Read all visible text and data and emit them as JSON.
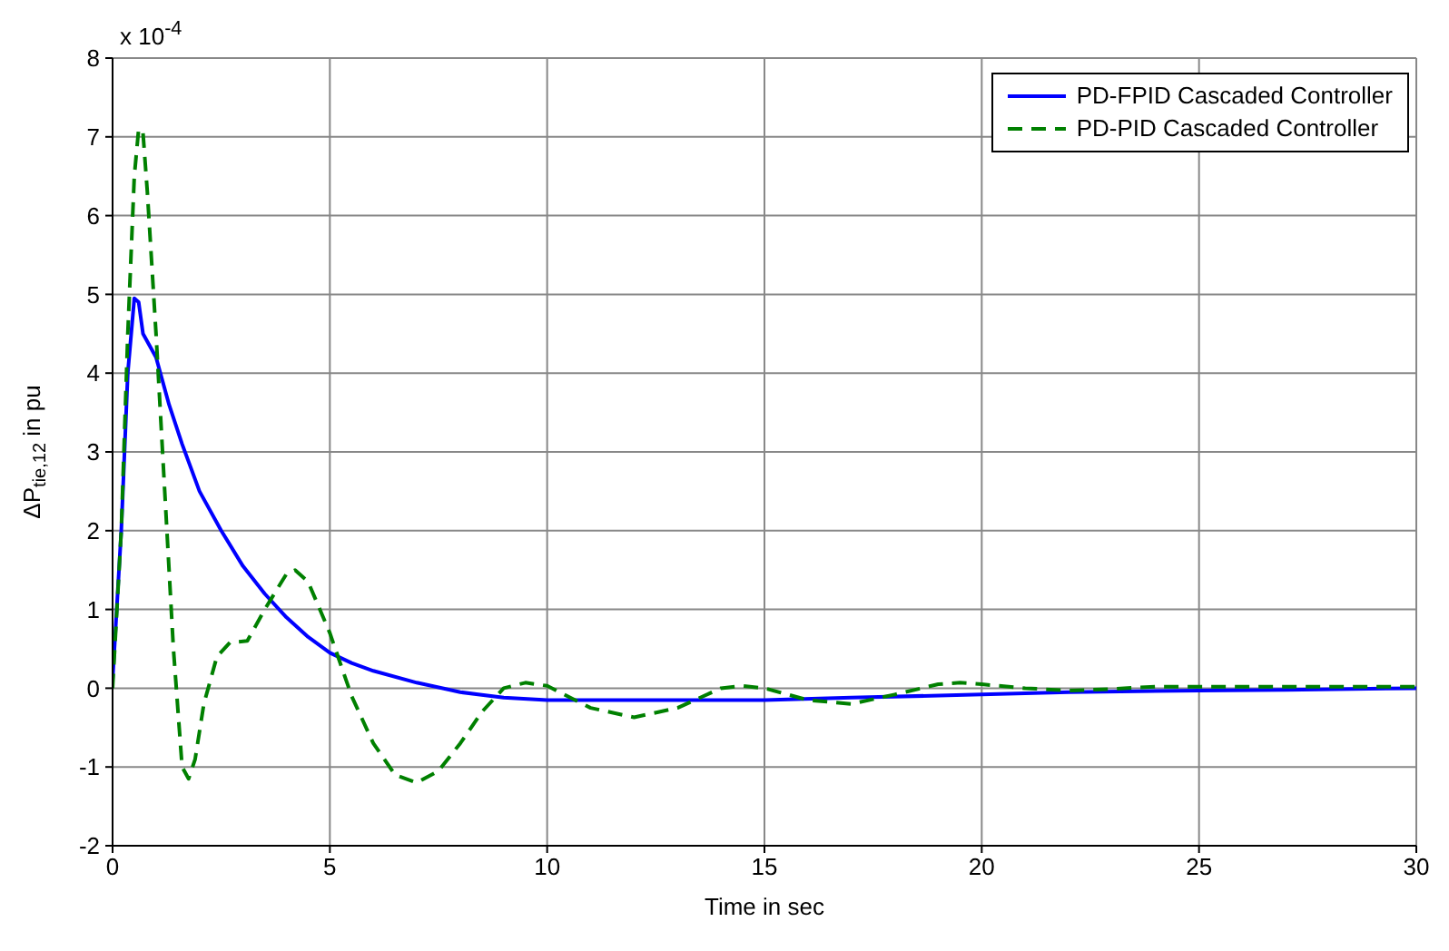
{
  "chart_data": {
    "type": "line",
    "xlabel": "Time in sec",
    "ylabel": "ΔP$_{tie,12}$ in pu",
    "annotations": [
      "x 10$^{-4}$"
    ],
    "xlim": [
      0,
      30
    ],
    "xticks": [
      0,
      5,
      10,
      15,
      20,
      25,
      30
    ],
    "ylim": [
      -2,
      8
    ],
    "yticks": [
      -2,
      -1,
      0,
      1,
      2,
      3,
      4,
      5,
      6,
      7,
      8
    ],
    "grid": true,
    "legend": "top right",
    "marker": "none",
    "series": [
      {
        "name": "PD-FPID Cascaded Controller",
        "color": "#0000ff",
        "line_style": "solid",
        "x": [
          0,
          0.2,
          0.35,
          0.5,
          0.6,
          0.7,
          1.0,
          1.3,
          1.6,
          2,
          2.5,
          3,
          3.5,
          4,
          4.5,
          5,
          5.5,
          6,
          7,
          8,
          9,
          10,
          12,
          15,
          17,
          20,
          22,
          25,
          27,
          30
        ],
        "values": [
          0.1,
          2,
          4,
          4.95,
          4.9,
          4.5,
          4.2,
          3.6,
          3.1,
          2.5,
          2.0,
          1.55,
          1.2,
          0.9,
          0.65,
          0.45,
          0.32,
          0.22,
          0.07,
          -0.05,
          -0.12,
          -0.15,
          -0.15,
          -0.15,
          -0.12,
          -0.08,
          -0.05,
          -0.03,
          -0.02,
          0
        ]
      },
      {
        "name": "PD-PID Cascaded Controller",
        "color": "#008000",
        "line_style": "dashed",
        "x": [
          0,
          0.2,
          0.35,
          0.5,
          0.6,
          0.7,
          0.8,
          1.0,
          1.2,
          1.4,
          1.6,
          1.75,
          1.9,
          2.1,
          2.4,
          2.7,
          3.1,
          3.5,
          4.0,
          4.2,
          4.5,
          5,
          5.5,
          6,
          6.5,
          7,
          7.5,
          8,
          8.5,
          9,
          9.5,
          10,
          11,
          12,
          13,
          14,
          14.5,
          15,
          16,
          17,
          18,
          19,
          19.5,
          20,
          21,
          22,
          23,
          24,
          26,
          28,
          30
        ],
        "values": [
          0,
          2,
          4.5,
          6.5,
          7.1,
          7.05,
          6.3,
          4.5,
          2.5,
          0.5,
          -1.0,
          -1.15,
          -0.9,
          -0.2,
          0.4,
          0.58,
          0.6,
          1.0,
          1.45,
          1.5,
          1.35,
          0.7,
          -0.1,
          -0.7,
          -1.1,
          -1.2,
          -1.05,
          -0.7,
          -0.3,
          0,
          0.07,
          0.03,
          -0.25,
          -0.37,
          -0.25,
          0,
          0.03,
          0,
          -0.15,
          -0.2,
          -0.08,
          0.05,
          0.07,
          0.05,
          0,
          -0.03,
          -0.01,
          0.02,
          0.02,
          0.02,
          0.02
        ]
      }
    ]
  }
}
